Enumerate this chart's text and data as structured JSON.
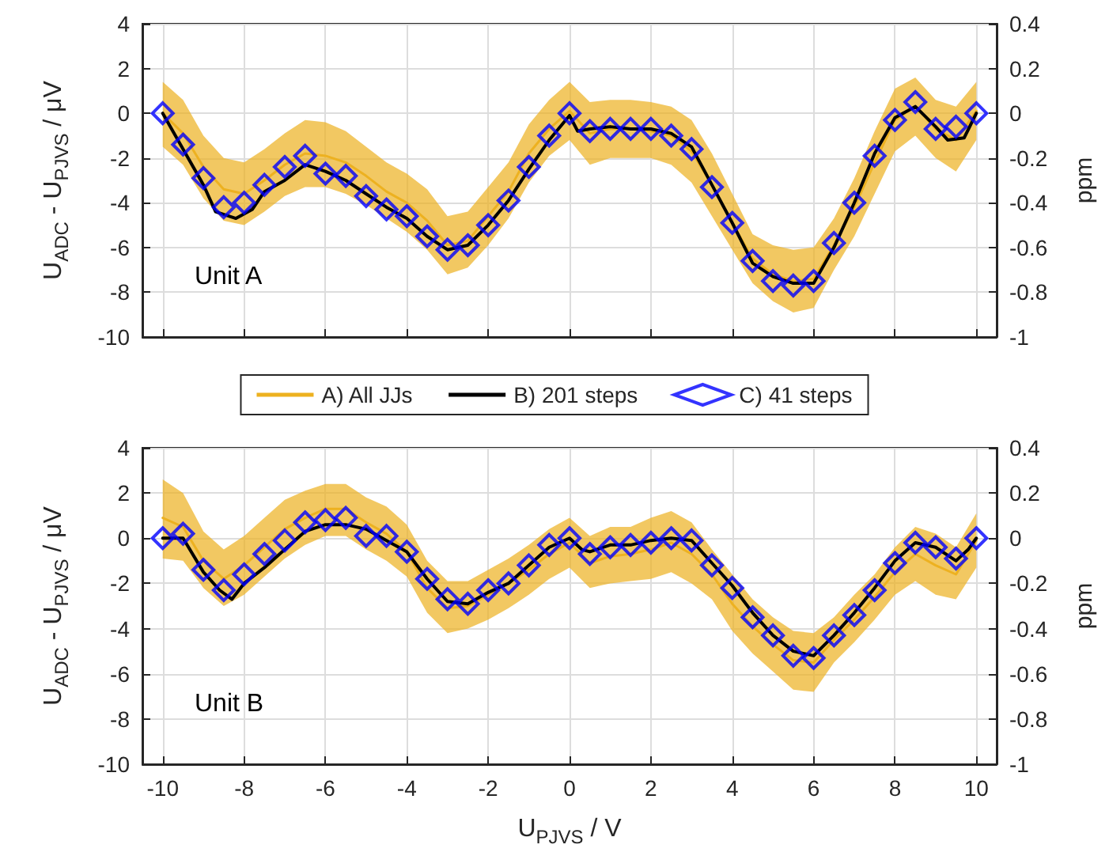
{
  "chart_data": [
    {
      "type": "line",
      "ylabel": "U$_{ADC}$ - U$_{PJVS}$ / μV",
      "y2label": "ppm",
      "annotations": [
        "Unit A"
      ],
      "xlim": [
        -10.5,
        10.5
      ],
      "xticks": [
        -10,
        -8,
        -6,
        -4,
        -2,
        0,
        2,
        4,
        6,
        8,
        10
      ],
      "ylim": [
        -10,
        4
      ],
      "yticks": [
        -10,
        -8,
        -6,
        -4,
        -2,
        0,
        2,
        4
      ],
      "y2lim": [
        -1,
        0.4
      ],
      "y2ticks": [
        -1,
        -0.8,
        -0.6,
        -0.4,
        -0.2,
        0,
        0.2,
        0.4
      ],
      "grid": true,
      "legend": "bottom",
      "tick_labels": "y",
      "x": [
        -10,
        -9.5,
        -9,
        -8.5,
        -8,
        -7.5,
        -7,
        -6.5,
        -6,
        -5.5,
        -5,
        -4.5,
        -4,
        -3.5,
        -3,
        -2.5,
        -2,
        -1.5,
        -1,
        -0.5,
        0,
        0.5,
        1,
        1.5,
        2,
        2.5,
        3,
        3.5,
        4,
        4.5,
        5,
        5.5,
        6,
        6.5,
        7,
        7.5,
        8,
        8.5,
        9,
        9.5,
        10
      ],
      "series": [
        {
          "name": "A) All JJs",
          "marker": "none",
          "color": "#edb120",
          "values": [
            0,
            -0.9,
            -2.4,
            -3.4,
            -3.6,
            -3.0,
            -2.3,
            -1.8,
            -1.9,
            -2.2,
            -2.8,
            -3.5,
            -4.0,
            -4.8,
            -5.9,
            -5.7,
            -4.6,
            -3.5,
            -1.8,
            -0.7,
            0.1,
            -0.9,
            -0.7,
            -0.7,
            -0.8,
            -1.0,
            -1.7,
            -3.2,
            -4.9,
            -6.5,
            -7.2,
            -7.5,
            -7.4,
            -5.9,
            -4.2,
            -2.2,
            -0.3,
            0.3,
            -0.7,
            -1.2,
            0.1
          ],
          "upper": [
            1.4,
            0.6,
            -1.0,
            -2.0,
            -2.2,
            -1.6,
            -0.9,
            -0.3,
            -0.4,
            -0.8,
            -1.5,
            -2.2,
            -2.7,
            -3.4,
            -4.6,
            -4.4,
            -3.3,
            -2.2,
            -0.5,
            0.6,
            1.4,
            0.5,
            0.6,
            0.6,
            0.5,
            0.3,
            -0.3,
            -1.8,
            -3.6,
            -5.4,
            -5.9,
            -6.1,
            -6.0,
            -4.7,
            -2.9,
            -0.8,
            1.1,
            1.6,
            0.6,
            0.3,
            1.4
          ],
          "lower": [
            -1.5,
            -2.3,
            -3.8,
            -4.8,
            -5.0,
            -4.4,
            -3.7,
            -3.3,
            -3.3,
            -3.6,
            -4.1,
            -4.7,
            -5.3,
            -6.1,
            -7.2,
            -6.9,
            -5.9,
            -4.7,
            -3.1,
            -1.9,
            -1.2,
            -2.3,
            -2.0,
            -2.0,
            -2.0,
            -2.3,
            -3.1,
            -4.6,
            -6.1,
            -7.6,
            -8.4,
            -8.9,
            -8.7,
            -7.0,
            -5.5,
            -3.6,
            -1.7,
            -1.0,
            -2.0,
            -2.6,
            -1.2
          ]
        },
        {
          "name": "B) 201 steps",
          "marker": "none",
          "color": "#000000",
          "x": [
            -10,
            -9.5,
            -9,
            -8.7,
            -8.2,
            -7.8,
            -7.5,
            -7,
            -6.5,
            -6,
            -5.5,
            -5,
            -4.5,
            -4,
            -3.5,
            -3,
            -2.5,
            -2,
            -1.5,
            -1,
            -0.5,
            0,
            0.2,
            0.5,
            1,
            1.5,
            2,
            2.5,
            3,
            3.5,
            4,
            4.5,
            5,
            5.5,
            6,
            6.5,
            7,
            7.5,
            8,
            8.5,
            9,
            9.3,
            9.7,
            10
          ],
          "values": [
            0,
            -1.6,
            -3.2,
            -4.4,
            -4.7,
            -4.3,
            -3.5,
            -3.0,
            -2.3,
            -2.6,
            -3.0,
            -3.6,
            -4.2,
            -4.7,
            -5.5,
            -6.1,
            -5.9,
            -5.0,
            -3.9,
            -2.5,
            -1.2,
            -0.1,
            -0.8,
            -0.7,
            -0.6,
            -0.7,
            -0.7,
            -0.9,
            -1.5,
            -3.2,
            -4.9,
            -6.7,
            -7.3,
            -7.6,
            -7.6,
            -6.0,
            -4.0,
            -1.8,
            -0.2,
            0.3,
            -0.6,
            -1.2,
            -1.1,
            0
          ]
        },
        {
          "name": "C) 41 steps",
          "type": "scatter",
          "marker": "diamond",
          "color": "#0000ff",
          "values": [
            0,
            -1.4,
            -2.9,
            -4.2,
            -4.0,
            -3.2,
            -2.4,
            -1.9,
            -2.7,
            -2.8,
            -3.7,
            -4.3,
            -4.6,
            -5.5,
            -6.1,
            -5.9,
            -5.0,
            -3.9,
            -2.4,
            -1.0,
            0,
            -0.8,
            -0.7,
            -0.7,
            -0.7,
            -1.0,
            -1.6,
            -3.3,
            -4.9,
            -6.6,
            -7.5,
            -7.7,
            -7.5,
            -5.8,
            -4.0,
            -1.9,
            -0.3,
            0.5,
            -0.7,
            -0.6,
            0
          ]
        }
      ]
    },
    {
      "type": "line",
      "xlabel": "U$_{PJVS}$ / V",
      "ylabel": "U$_{ADC}$ - U$_{PJVS}$ / μV",
      "y2label": "ppm",
      "annotations": [
        "Unit B"
      ],
      "xlim": [
        -10.5,
        10.5
      ],
      "xticks": [
        -10,
        -8,
        -6,
        -4,
        -2,
        0,
        2,
        4,
        6,
        8,
        10
      ],
      "ylim": [
        -10,
        4
      ],
      "yticks": [
        -10,
        -8,
        -6,
        -4,
        -2,
        0,
        2,
        4
      ],
      "y2lim": [
        -1,
        0.4
      ],
      "y2ticks": [
        -1,
        -0.8,
        -0.6,
        -0.4,
        -0.2,
        0,
        0.2,
        0.4
      ],
      "grid": true,
      "x": [
        -10,
        -9.5,
        -9,
        -8.5,
        -8,
        -7.5,
        -7,
        -6.5,
        -6,
        -5.5,
        -5,
        -4.5,
        -4,
        -3.5,
        -3,
        -2.5,
        -2,
        -1.5,
        -1,
        -0.5,
        0,
        0.5,
        1,
        1.5,
        2,
        2.5,
        3,
        3.5,
        4,
        4.5,
        5,
        5.5,
        6,
        6.5,
        7,
        7.5,
        8,
        8.5,
        9,
        9.5,
        10
      ],
      "series": [
        {
          "marker": "none",
          "color": "#edb120",
          "values": [
            0.9,
            0.5,
            -1.0,
            -1.8,
            -1.2,
            -0.4,
            0.4,
            0.9,
            1.3,
            1.3,
            0.7,
            0.2,
            -0.6,
            -2.2,
            -3.1,
            -3.0,
            -2.5,
            -2.0,
            -1.4,
            -0.7,
            -0.2,
            -1.1,
            -0.8,
            -0.7,
            -0.5,
            -0.2,
            -0.7,
            -1.6,
            -2.9,
            -3.9,
            -4.7,
            -5.4,
            -5.5,
            -4.5,
            -3.6,
            -2.6,
            -1.5,
            -0.7,
            -1.2,
            -1.6,
            -0.1
          ],
          "upper": [
            2.6,
            2.0,
            0.3,
            -0.5,
            0.1,
            0.9,
            1.7,
            2.1,
            2.4,
            2.4,
            1.8,
            1.4,
            0.6,
            -1.0,
            -1.9,
            -1.9,
            -1.4,
            -0.9,
            -0.3,
            0.4,
            0.9,
            0.1,
            0.5,
            0.5,
            0.9,
            1.2,
            0.7,
            -0.5,
            -1.6,
            -2.7,
            -3.5,
            -4.1,
            -4.2,
            -3.5,
            -2.5,
            -1.6,
            -0.4,
            0.5,
            0.2,
            -0.4,
            1.1
          ],
          "lower": [
            -0.9,
            -1.0,
            -2.2,
            -3.0,
            -2.5,
            -1.7,
            -0.9,
            -0.3,
            0.1,
            0.1,
            -0.5,
            -1.0,
            -1.7,
            -3.3,
            -4.2,
            -4.0,
            -3.6,
            -3.1,
            -2.5,
            -1.8,
            -1.3,
            -2.2,
            -2.0,
            -1.9,
            -1.8,
            -1.5,
            -2.0,
            -2.7,
            -4.1,
            -5.1,
            -5.9,
            -6.7,
            -6.8,
            -5.5,
            -4.6,
            -3.6,
            -2.5,
            -1.9,
            -2.5,
            -2.7,
            -1.3
          ]
        },
        {
          "marker": "none",
          "color": "#000000",
          "x": [
            -10,
            -9.5,
            -9,
            -8.6,
            -8.3,
            -8,
            -7.5,
            -7,
            -6.5,
            -6,
            -5.5,
            -5,
            -4.5,
            -4,
            -3.5,
            -3,
            -2.5,
            -2,
            -1.5,
            -1,
            -0.5,
            0,
            0.3,
            0.5,
            1,
            1.5,
            2,
            2.5,
            3,
            3.5,
            4,
            4.5,
            5,
            5.5,
            6,
            6.5,
            7,
            7.5,
            8,
            8.5,
            9,
            9.5,
            9.8,
            10
          ],
          "values": [
            0,
            0,
            -1.5,
            -2.3,
            -2.7,
            -2.0,
            -1.3,
            -0.5,
            0.3,
            0.6,
            0.6,
            0.4,
            -0.1,
            -0.6,
            -1.8,
            -2.8,
            -2.9,
            -2.4,
            -2.0,
            -1.2,
            -0.4,
            0,
            -0.5,
            -0.6,
            -0.3,
            -0.3,
            -0.1,
            0,
            -0.1,
            -1.1,
            -2.1,
            -3.3,
            -4.3,
            -5.0,
            -5.2,
            -4.3,
            -3.3,
            -2.2,
            -1.0,
            -0.2,
            -0.4,
            -1.0,
            -0.5,
            0
          ]
        },
        {
          "type": "scatter",
          "marker": "diamond",
          "color": "#0000ff",
          "values": [
            0,
            0.2,
            -1.4,
            -2.3,
            -1.6,
            -0.7,
            -0.1,
            0.7,
            0.8,
            0.9,
            0.1,
            0.1,
            -0.6,
            -1.8,
            -2.7,
            -2.9,
            -2.3,
            -2.0,
            -1.2,
            -0.3,
            0,
            -0.7,
            -0.4,
            -0.3,
            -0.2,
            0,
            -0.1,
            -1.2,
            -2.2,
            -3.5,
            -4.3,
            -5.2,
            -5.3,
            -4.3,
            -3.4,
            -2.3,
            -1.1,
            -0.2,
            -0.4,
            -0.9,
            0
          ]
        }
      ]
    }
  ]
}
